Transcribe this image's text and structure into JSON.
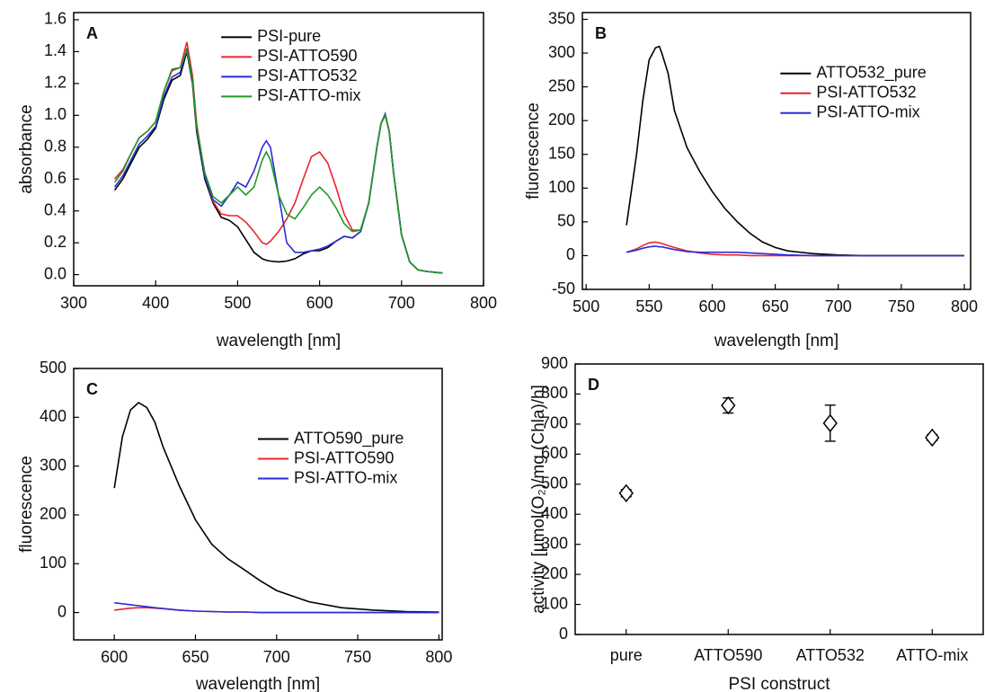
{
  "chart_data": [
    {
      "type": "line",
      "panel_label": "A",
      "x_label": "wavelength [nm]",
      "y_label": "absorbance",
      "xlim": [
        300,
        800
      ],
      "xticks": [
        300,
        400,
        500,
        600,
        700,
        800
      ],
      "ylim": [
        -0.07,
        1.645
      ],
      "yticks": [
        {
          "value": 0,
          "label": "0.0"
        },
        0.2,
        0.4,
        0.6,
        0.8,
        {
          "value": 1,
          "label": "1.0"
        },
        1.2,
        1.4,
        1.6
      ],
      "legend": "upper center",
      "x": [
        350,
        360,
        370,
        380,
        390,
        400,
        410,
        420,
        430,
        438,
        445,
        450,
        460,
        470,
        480,
        490,
        500,
        510,
        520,
        530,
        535,
        540,
        550,
        560,
        570,
        580,
        590,
        600,
        610,
        620,
        630,
        640,
        650,
        660,
        670,
        675,
        680,
        685,
        690,
        700,
        710,
        720,
        730,
        750
      ],
      "series": [
        {
          "name": "PSI-pure",
          "color": "#000000",
          "values": [
            0.53,
            0.6,
            0.7,
            0.8,
            0.85,
            0.92,
            1.1,
            1.22,
            1.25,
            1.4,
            1.2,
            0.9,
            0.6,
            0.45,
            0.36,
            0.34,
            0.3,
            0.22,
            0.14,
            0.1,
            0.09,
            0.085,
            0.08,
            0.085,
            0.1,
            0.13,
            0.15,
            0.15,
            0.17,
            0.21,
            0.24,
            0.23,
            0.27,
            0.45,
            0.8,
            0.95,
            1.0,
            0.9,
            0.65,
            0.25,
            0.08,
            0.03,
            0.02,
            0.01
          ]
        },
        {
          "name": "PSI-ATTO590",
          "color": "#e8262b",
          "values": [
            0.6,
            0.66,
            0.76,
            0.86,
            0.9,
            0.96,
            1.15,
            1.28,
            1.3,
            1.46,
            1.25,
            0.95,
            0.62,
            0.46,
            0.38,
            0.37,
            0.37,
            0.33,
            0.27,
            0.2,
            0.19,
            0.21,
            0.27,
            0.35,
            0.45,
            0.6,
            0.74,
            0.77,
            0.7,
            0.55,
            0.38,
            0.28,
            0.28,
            0.45,
            0.8,
            0.95,
            1.0,
            0.9,
            0.65,
            0.25,
            0.08,
            0.03,
            0.02,
            0.01
          ]
        },
        {
          "name": "PSI-ATTO532",
          "color": "#2b2bdc",
          "values": [
            0.55,
            0.62,
            0.72,
            0.82,
            0.87,
            0.93,
            1.12,
            1.24,
            1.27,
            1.42,
            1.22,
            0.92,
            0.62,
            0.47,
            0.43,
            0.5,
            0.58,
            0.55,
            0.65,
            0.8,
            0.84,
            0.8,
            0.5,
            0.2,
            0.14,
            0.14,
            0.15,
            0.16,
            0.18,
            0.21,
            0.24,
            0.23,
            0.27,
            0.45,
            0.8,
            0.95,
            1.01,
            0.9,
            0.65,
            0.25,
            0.08,
            0.03,
            0.02,
            0.01
          ]
        },
        {
          "name": "PSI-ATTO-mix",
          "color": "#1f9a24",
          "values": [
            0.58,
            0.65,
            0.76,
            0.86,
            0.9,
            0.96,
            1.15,
            1.29,
            1.3,
            1.41,
            1.22,
            0.93,
            0.64,
            0.49,
            0.45,
            0.5,
            0.55,
            0.5,
            0.55,
            0.72,
            0.77,
            0.72,
            0.5,
            0.38,
            0.35,
            0.42,
            0.5,
            0.55,
            0.5,
            0.42,
            0.32,
            0.27,
            0.28,
            0.45,
            0.8,
            0.95,
            1.0,
            0.9,
            0.65,
            0.25,
            0.08,
            0.03,
            0.02,
            0.01
          ]
        }
      ]
    },
    {
      "type": "line",
      "panel_label": "B",
      "x_label": "wavelength [nm]",
      "y_label": "fluorescence",
      "xlim": [
        497,
        805
      ],
      "xticks": [
        500,
        550,
        600,
        650,
        700,
        750,
        800
      ],
      "ylim": [
        -50,
        360
      ],
      "yticks": [
        -50,
        0,
        50,
        100,
        150,
        200,
        250,
        300,
        350
      ],
      "legend": "upper right",
      "x": [
        532,
        540,
        545,
        550,
        555,
        558,
        560,
        565,
        570,
        580,
        590,
        600,
        610,
        620,
        630,
        640,
        650,
        660,
        680,
        700,
        720,
        750,
        800
      ],
      "series": [
        {
          "name": "ATTO532_pure",
          "color": "#000000",
          "values": [
            45,
            150,
            230,
            290,
            308,
            310,
            300,
            270,
            215,
            160,
            125,
            95,
            70,
            50,
            33,
            20,
            12,
            7,
            3,
            1,
            0,
            0,
            0
          ]
        },
        {
          "name": "PSI-ATTO532",
          "color": "#e8262b",
          "values": [
            5,
            10,
            15,
            19,
            20,
            19,
            18,
            15,
            12,
            7,
            4,
            2,
            1,
            1,
            0,
            0,
            0,
            0,
            0,
            0,
            0,
            0,
            0
          ]
        },
        {
          "name": "PSI-ATTO-mix",
          "color": "#2b2bdc",
          "values": [
            5,
            8,
            11,
            13,
            14,
            13,
            13,
            11,
            9,
            6,
            5,
            5,
            5,
            5,
            4,
            3,
            2,
            1,
            0,
            0,
            0,
            0,
            0
          ]
        }
      ]
    },
    {
      "type": "line",
      "panel_label": "C",
      "x_label": "wavelength [nm]",
      "y_label": "fluorescence",
      "xlim": [
        575,
        802
      ],
      "xticks": [
        600,
        650,
        700,
        750,
        800
      ],
      "ylim": [
        -56,
        500
      ],
      "yticks": [
        0,
        100,
        200,
        300,
        400,
        500
      ],
      "legend": "center right",
      "x": [
        600,
        605,
        610,
        615,
        620,
        625,
        630,
        640,
        650,
        660,
        670,
        680,
        690,
        700,
        720,
        740,
        760,
        780,
        800
      ],
      "series": [
        {
          "name": "ATTO590_pure",
          "color": "#000000",
          "values": [
            255,
            360,
            415,
            430,
            420,
            390,
            340,
            260,
            190,
            140,
            110,
            88,
            65,
            45,
            22,
            10,
            5,
            2,
            1
          ]
        },
        {
          "name": "PSI-ATTO590",
          "color": "#e8262b",
          "values": [
            5,
            7,
            9,
            10,
            10,
            9,
            8,
            5,
            3,
            2,
            1,
            1,
            0,
            0,
            0,
            0,
            0,
            0,
            0
          ]
        },
        {
          "name": "PSI-ATTO-mix",
          "color": "#2b2bdc",
          "values": [
            20,
            18,
            16,
            14,
            12,
            10,
            8,
            5,
            3,
            2,
            1,
            1,
            0,
            0,
            0,
            0,
            0,
            0,
            0
          ]
        }
      ]
    },
    {
      "type": "errorscatter",
      "panel_label": "D",
      "x_label": "PSI construct",
      "y_label": "activity [µmol(O₂)/mg (Chla)/h]",
      "ylim": [
        0,
        900
      ],
      "yticks": [
        0,
        100,
        200,
        300,
        400,
        500,
        600,
        700,
        800,
        900
      ],
      "categories": [
        "pure",
        "ATTO590",
        "ATTO532",
        "ATTO-mix"
      ],
      "values": [
        470,
        762,
        703,
        655
      ],
      "errors": [
        12,
        25,
        60,
        10
      ],
      "color": "#000000"
    }
  ]
}
